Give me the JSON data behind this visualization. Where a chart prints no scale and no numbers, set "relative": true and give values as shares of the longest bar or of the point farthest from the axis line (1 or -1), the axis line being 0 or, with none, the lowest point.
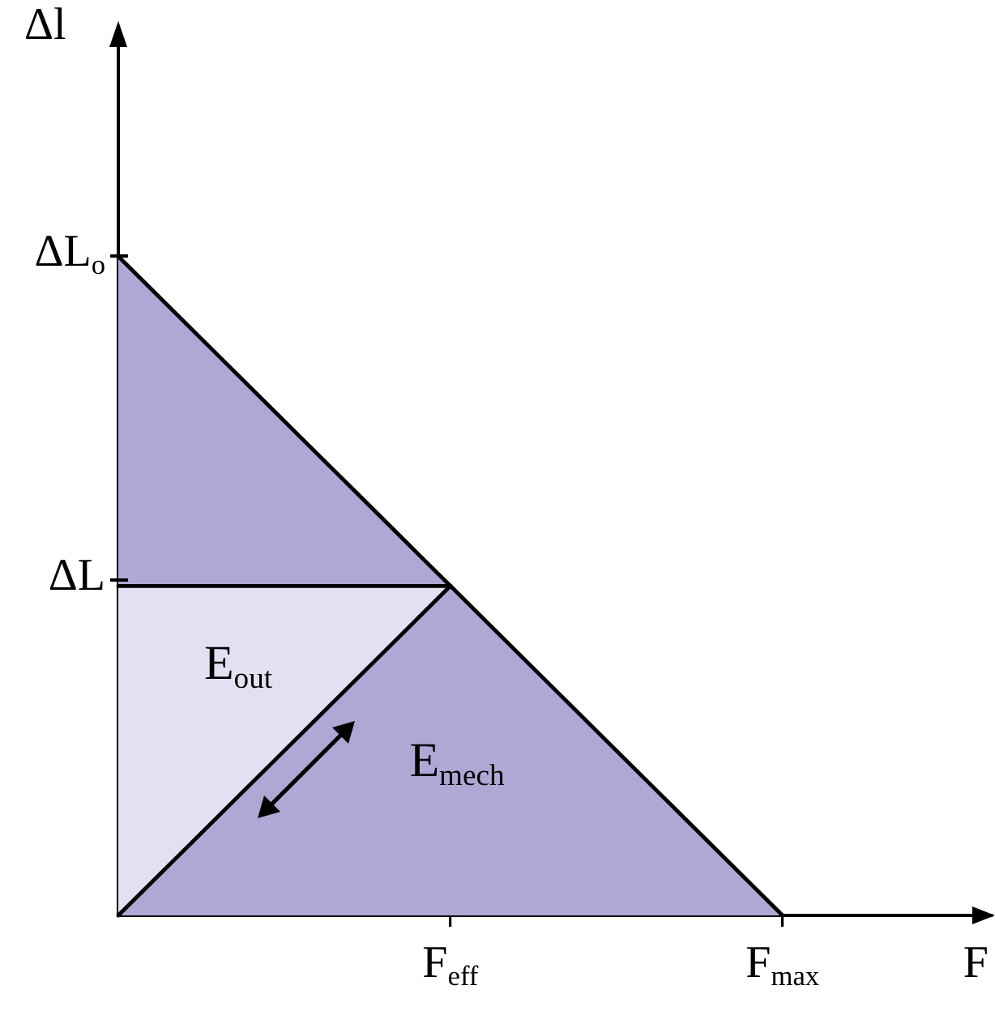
{
  "chart_data": {
    "type": "area",
    "relative": true,
    "stacked": true,
    "xlabel": "F",
    "ylabel": "Δl",
    "categories": [
      null,
      "F$_{eff}$",
      "F$_{max}$"
    ],
    "series": [
      {
        "type": "area",
        "values": [
          0,
          0.5,
          0
        ],
        "color": "#b1a7d5"
      },
      {
        "type": "area",
        "values": [
          0.5,
          0,
          null
        ],
        "color": "#e4e0f1"
      },
      {
        "type": "area",
        "values": [
          0.5,
          0,
          null
        ],
        "color": "#b1a7d5"
      }
    ],
    "annotations": [
      "E$_{out}$",
      "E$_{mech}$",
      "ΔL",
      "ΔL$_{o}$"
    ]
  }
}
